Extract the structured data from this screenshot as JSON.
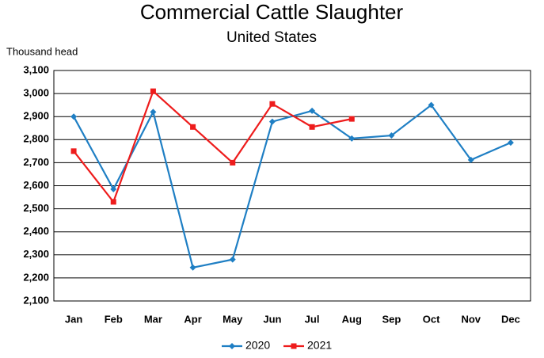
{
  "chart_data": {
    "type": "line",
    "title": "Commercial Cattle Slaughter",
    "subtitle": "United States",
    "y_axis_label": "Thousand head",
    "categories": [
      "Jan",
      "Feb",
      "Mar",
      "Apr",
      "May",
      "Jun",
      "Jul",
      "Aug",
      "Sep",
      "Oct",
      "Nov",
      "Dec"
    ],
    "series": [
      {
        "name": "2020",
        "color": "#1f7fc4",
        "marker": "diamond",
        "values": [
          2900,
          2585,
          2920,
          2245,
          2280,
          2878,
          2925,
          2805,
          2818,
          2950,
          2712,
          2787
        ]
      },
      {
        "name": "2021",
        "color": "#ee1c1c",
        "marker": "square",
        "values": [
          2750,
          2530,
          3010,
          2855,
          2700,
          2955,
          2855,
          2890,
          null,
          null,
          null,
          null
        ]
      }
    ],
    "ylim": [
      2100,
      3100
    ],
    "yticks": [
      {
        "value": 2100,
        "label": "2,100"
      },
      {
        "value": 2200,
        "label": "2,200"
      },
      {
        "value": 2300,
        "label": "2,300"
      },
      {
        "value": 2400,
        "label": "2,400"
      },
      {
        "value": 2500,
        "label": "2,500"
      },
      {
        "value": 2600,
        "label": "2,600"
      },
      {
        "value": 2700,
        "label": "2,700"
      },
      {
        "value": 2800,
        "label": "2,800"
      },
      {
        "value": 2900,
        "label": "2,900"
      },
      {
        "value": 3000,
        "label": "3,000"
      },
      {
        "value": 3100,
        "label": "3,100"
      }
    ],
    "grid": true,
    "legend": "bottom"
  }
}
